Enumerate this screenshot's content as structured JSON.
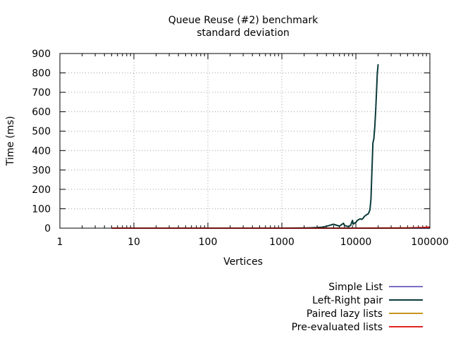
{
  "chart_data": {
    "type": "line",
    "title": "Queue Reuse (#2) benchmark",
    "subtitle": "standard deviation",
    "xlabel": "Vertices",
    "ylabel": "Time (ms)",
    "xscale": "log",
    "xlim": [
      1,
      100000
    ],
    "ylim": [
      0,
      900
    ],
    "xticks": [
      {
        "value": 1,
        "label": "1"
      },
      {
        "value": 10,
        "label": "10"
      },
      {
        "value": 100,
        "label": "100"
      },
      {
        "value": 1000,
        "label": "1000"
      },
      {
        "value": 10000,
        "label": "10000"
      },
      {
        "value": 100000,
        "label": "100000"
      }
    ],
    "yticks": [
      {
        "value": 0,
        "label": "0"
      },
      {
        "value": 100,
        "label": "100"
      },
      {
        "value": 200,
        "label": "200"
      },
      {
        "value": 300,
        "label": "300"
      },
      {
        "value": 400,
        "label": "400"
      },
      {
        "value": 500,
        "label": "500"
      },
      {
        "value": 600,
        "label": "600"
      },
      {
        "value": 700,
        "label": "700"
      },
      {
        "value": 800,
        "label": "800"
      },
      {
        "value": 900,
        "label": "900"
      }
    ],
    "grid": true,
    "legend_position": "bottom-right",
    "series": [
      {
        "name": "Simple List",
        "color": "#7b6fc4",
        "x": [
          5,
          10,
          100,
          1000,
          10000,
          100000
        ],
        "y": [
          0,
          0,
          0,
          0,
          0,
          0
        ]
      },
      {
        "name": "Left-Right pair",
        "color": "#0b3a3a",
        "x": [
          5,
          10,
          100,
          1000,
          2000,
          2500,
          3000,
          3500,
          3800,
          4000,
          4200,
          4500,
          4700,
          5000,
          6000,
          6800,
          7000,
          7500,
          8000,
          8500,
          9000,
          9200,
          9500,
          10000,
          10500,
          11000,
          11500,
          12000,
          12500,
          13000,
          13500,
          14000,
          14500,
          15000,
          15500,
          16000,
          16500,
          17000,
          17500,
          18000,
          18500,
          19000,
          19500,
          20000
        ],
        "y": [
          0,
          0,
          0,
          0,
          1,
          2,
          3,
          5,
          8,
          10,
          12,
          15,
          18,
          20,
          10,
          25,
          15,
          10,
          8,
          15,
          40,
          20,
          25,
          30,
          40,
          45,
          48,
          45,
          50,
          60,
          65,
          70,
          72,
          80,
          95,
          150,
          300,
          440,
          460,
          520,
          600,
          700,
          800,
          845
        ]
      },
      {
        "name": "Paired lazy lists",
        "color": "#c8961e",
        "x": [
          5,
          10,
          100,
          1000,
          10000,
          50000,
          80000,
          100000
        ],
        "y": [
          0,
          0,
          0,
          0,
          0,
          1,
          2,
          4
        ]
      },
      {
        "name": "Pre-evaluated lists",
        "color": "#e32020",
        "x": [
          5,
          10,
          100,
          1000,
          10000,
          50000,
          80000,
          100000
        ],
        "y": [
          0,
          0,
          0,
          0,
          0,
          1,
          3,
          6
        ]
      }
    ]
  }
}
